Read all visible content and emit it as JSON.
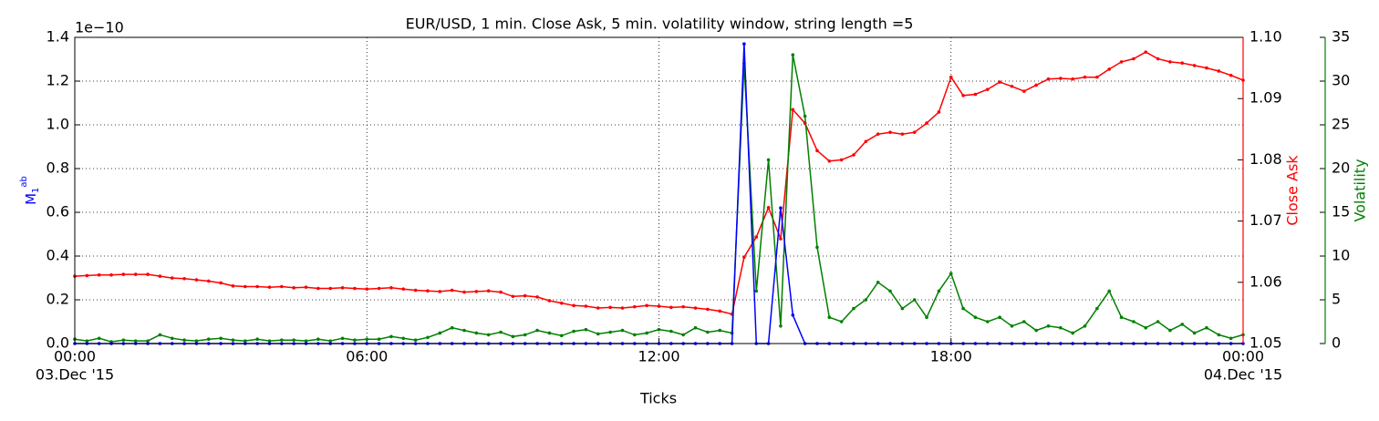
{
  "chart_data": {
    "type": "line",
    "title": "EUR/USD, 1 min. Close Ask, 5 min. volatility window, string length =5",
    "xlabel": "Ticks",
    "ylabel": {
      "base": "M",
      "sub": "1",
      "sup": "ab"
    },
    "y_offset_label": "1e−10",
    "y2label": "Close Ask",
    "y3label": "Volatility",
    "grid": true,
    "xlim": [
      0,
      24
    ],
    "xticks": [
      {
        "value": 0,
        "label": "00:00"
      },
      {
        "value": 6,
        "label": "06:00"
      },
      {
        "value": 12,
        "label": "12:00"
      },
      {
        "value": 18,
        "label": "18:00"
      },
      {
        "value": 24,
        "label": "00:00"
      }
    ],
    "date_labels": [
      {
        "value": 0,
        "label": "03.Dec '15"
      },
      {
        "value": 24,
        "label": "04.Dec '15"
      }
    ],
    "ylim": [
      0,
      1.4
    ],
    "yticks": [
      {
        "value": 0,
        "label": "0.0"
      },
      {
        "value": 0.2,
        "label": "0.2"
      },
      {
        "value": 0.4,
        "label": "0.4"
      },
      {
        "value": 0.6,
        "label": "0.6"
      },
      {
        "value": 0.8,
        "label": "0.8"
      },
      {
        "value": 1.0,
        "label": "1.0"
      },
      {
        "value": 1.2,
        "label": "1.2"
      },
      {
        "value": 1.4,
        "label": "1.4"
      }
    ],
    "y2lim": [
      1.05,
      1.1
    ],
    "y2ticks": [
      1.05,
      1.06,
      1.07,
      1.08,
      1.09,
      {
        "value": 1.1,
        "label": "1.10"
      }
    ],
    "y3lim": [
      0,
      35
    ],
    "y3ticks": [
      0,
      5,
      10,
      15,
      20,
      25,
      30,
      35
    ],
    "x": [
      0,
      0.25,
      0.5,
      0.75,
      1,
      1.25,
      1.5,
      1.75,
      2,
      2.25,
      2.5,
      2.75,
      3,
      3.25,
      3.5,
      3.75,
      4,
      4.25,
      4.5,
      4.75,
      5,
      5.25,
      5.5,
      5.75,
      6,
      6.25,
      6.5,
      6.75,
      7,
      7.25,
      7.5,
      7.75,
      8,
      8.25,
      8.5,
      8.75,
      9,
      9.25,
      9.5,
      9.75,
      10,
      10.25,
      10.5,
      10.75,
      11,
      11.25,
      11.5,
      11.75,
      12,
      12.25,
      12.5,
      12.75,
      13,
      13.25,
      13.5,
      13.75,
      14,
      14.25,
      14.5,
      14.75,
      15,
      15.25,
      15.5,
      15.75,
      16,
      16.25,
      16.5,
      16.75,
      17,
      17.25,
      17.5,
      17.75,
      18,
      18.25,
      18.5,
      18.75,
      19,
      19.25,
      19.5,
      19.75,
      20,
      20.25,
      20.5,
      20.75,
      21,
      21.25,
      21.5,
      21.75,
      22,
      22.25,
      22.5,
      22.75,
      23,
      23.25,
      23.5,
      23.75,
      24
    ],
    "series": [
      {
        "axis": "y2",
        "color": "#ff0000",
        "values": [
          1.061,
          1.0611,
          1.0612,
          1.0612,
          1.0613,
          1.0613,
          1.0613,
          1.061,
          1.0607,
          1.0606,
          1.0604,
          1.0602,
          1.0599,
          1.0594,
          1.0593,
          1.0593,
          1.0592,
          1.0593,
          1.0591,
          1.0592,
          1.059,
          1.059,
          1.0591,
          1.059,
          1.0589,
          1.059,
          1.0591,
          1.0589,
          1.0587,
          1.0586,
          1.0585,
          1.0587,
          1.0584,
          1.0585,
          1.0586,
          1.0584,
          1.0577,
          1.0578,
          1.0576,
          1.057,
          1.0566,
          1.0562,
          1.0561,
          1.0558,
          1.0559,
          1.0558,
          1.056,
          1.0562,
          1.0561,
          1.0559,
          1.056,
          1.0558,
          1.0556,
          1.0553,
          1.0548,
          1.0641,
          1.0674,
          1.0722,
          1.0671,
          1.0882,
          1.086,
          1.0815,
          1.0798,
          1.08,
          1.0808,
          1.083,
          1.0842,
          1.0845,
          1.0842,
          1.0845,
          1.086,
          1.0878,
          1.0935,
          1.0905,
          1.0907,
          1.0915,
          1.0927,
          1.092,
          1.0912,
          1.0922,
          1.0932,
          1.0933,
          1.0932,
          1.0935,
          1.0935,
          1.0948,
          1.096,
          1.0965,
          1.0976,
          1.0965,
          1.096,
          1.0958,
          1.0954,
          1.095,
          1.0945,
          1.0938,
          1.093
        ]
      },
      {
        "axis": "y3",
        "color": "#008000",
        "values": [
          0.5,
          0.3,
          0.6,
          0.2,
          0.4,
          0.3,
          0.3,
          1.0,
          0.6,
          0.4,
          0.3,
          0.5,
          0.6,
          0.4,
          0.3,
          0.5,
          0.3,
          0.4,
          0.4,
          0.3,
          0.5,
          0.3,
          0.6,
          0.4,
          0.5,
          0.5,
          0.8,
          0.6,
          0.4,
          0.7,
          1.2,
          1.8,
          1.5,
          1.2,
          1.0,
          1.3,
          0.8,
          1.0,
          1.5,
          1.2,
          0.9,
          1.4,
          1.6,
          1.1,
          1.3,
          1.5,
          1.0,
          1.2,
          1.6,
          1.4,
          1.0,
          1.8,
          1.3,
          1.5,
          1.2,
          32,
          6,
          21,
          2,
          33,
          26,
          11,
          3,
          2.5,
          4,
          5,
          7,
          6,
          4,
          5,
          3,
          6,
          8,
          4,
          3,
          2.5,
          3,
          2,
          2.5,
          1.5,
          2,
          1.8,
          1.2,
          2.0,
          4,
          6,
          3,
          2.5,
          1.8,
          2.5,
          1.5,
          2.2,
          1.2,
          1.8,
          1.0,
          0.6,
          1.0
        ]
      },
      {
        "axis": "y",
        "color": "#0000ff",
        "values": [
          0,
          0,
          0,
          0,
          0,
          0,
          0,
          0,
          0,
          0,
          0,
          0,
          0,
          0,
          0,
          0,
          0,
          0,
          0,
          0,
          0,
          0,
          0,
          0,
          0,
          0,
          0,
          0,
          0,
          0,
          0,
          0,
          0,
          0,
          0,
          0,
          0,
          0,
          0,
          0,
          0,
          0,
          0,
          0,
          0,
          0,
          0,
          0,
          0,
          0,
          0,
          0,
          0,
          0,
          0,
          1.37,
          0,
          0,
          0.62,
          0.13,
          0,
          0,
          0,
          0,
          0,
          0,
          0,
          0,
          0,
          0,
          0,
          0,
          0,
          0,
          0,
          0,
          0,
          0,
          0,
          0,
          0,
          0,
          0,
          0,
          0,
          0,
          0,
          0,
          0,
          0,
          0,
          0,
          0,
          0,
          0,
          0,
          0
        ]
      }
    ]
  }
}
